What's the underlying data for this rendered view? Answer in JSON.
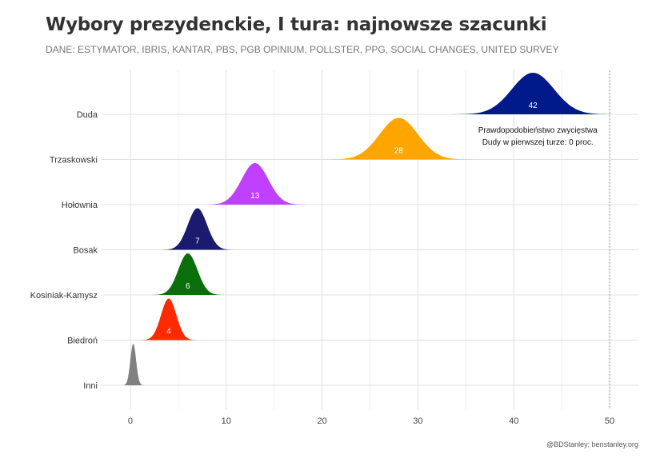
{
  "title": "Wybory prezydenckie, I tura: najnowsze szacunki",
  "subtitle": "DANE: ESTYMATOR, IBRIS, KANTAR, PBS, PGB OPINIUM, POLLSTER, PPG, SOCIAL CHANGES, UNITED SURVEY",
  "caption": "@BDStanley; benstanley.org",
  "chart_data": {
    "type": "area",
    "subtype": "ridgeline",
    "xlim": [
      -3,
      53
    ],
    "x_ticks": [
      0,
      10,
      20,
      30,
      40,
      50
    ],
    "threshold": 50,
    "grid": true,
    "annotation": {
      "lines": [
        "Prawdopodobieństwo zwycięstwa",
        "Dudy w pierwszej turze: 0 proc."
      ],
      "x": 42.5
    },
    "series": [
      {
        "name": "Duda",
        "value": 42,
        "value_label": "42",
        "spread": 2.2,
        "color": "#001a8c"
      },
      {
        "name": "Trzaskowski",
        "value": 28,
        "value_label": "28",
        "spread": 2.0,
        "color": "#ffa500"
      },
      {
        "name": "Hołownia",
        "value": 13,
        "value_label": "13",
        "spread": 1.4,
        "color": "#c040ff"
      },
      {
        "name": "Bosak",
        "value": 7,
        "value_label": "7",
        "spread": 1.0,
        "color": "#1a1a6e"
      },
      {
        "name": "Kosiniak-Kamysz",
        "value": 6,
        "value_label": "6",
        "spread": 1.0,
        "color": "#0a6e0a"
      },
      {
        "name": "Biedroń",
        "value": 4,
        "value_label": "4",
        "spread": 0.8,
        "color": "#ff2a00"
      },
      {
        "name": "Inni",
        "value": 0.3,
        "value_label": "",
        "spread": 0.3,
        "color": "#808080"
      }
    ]
  }
}
